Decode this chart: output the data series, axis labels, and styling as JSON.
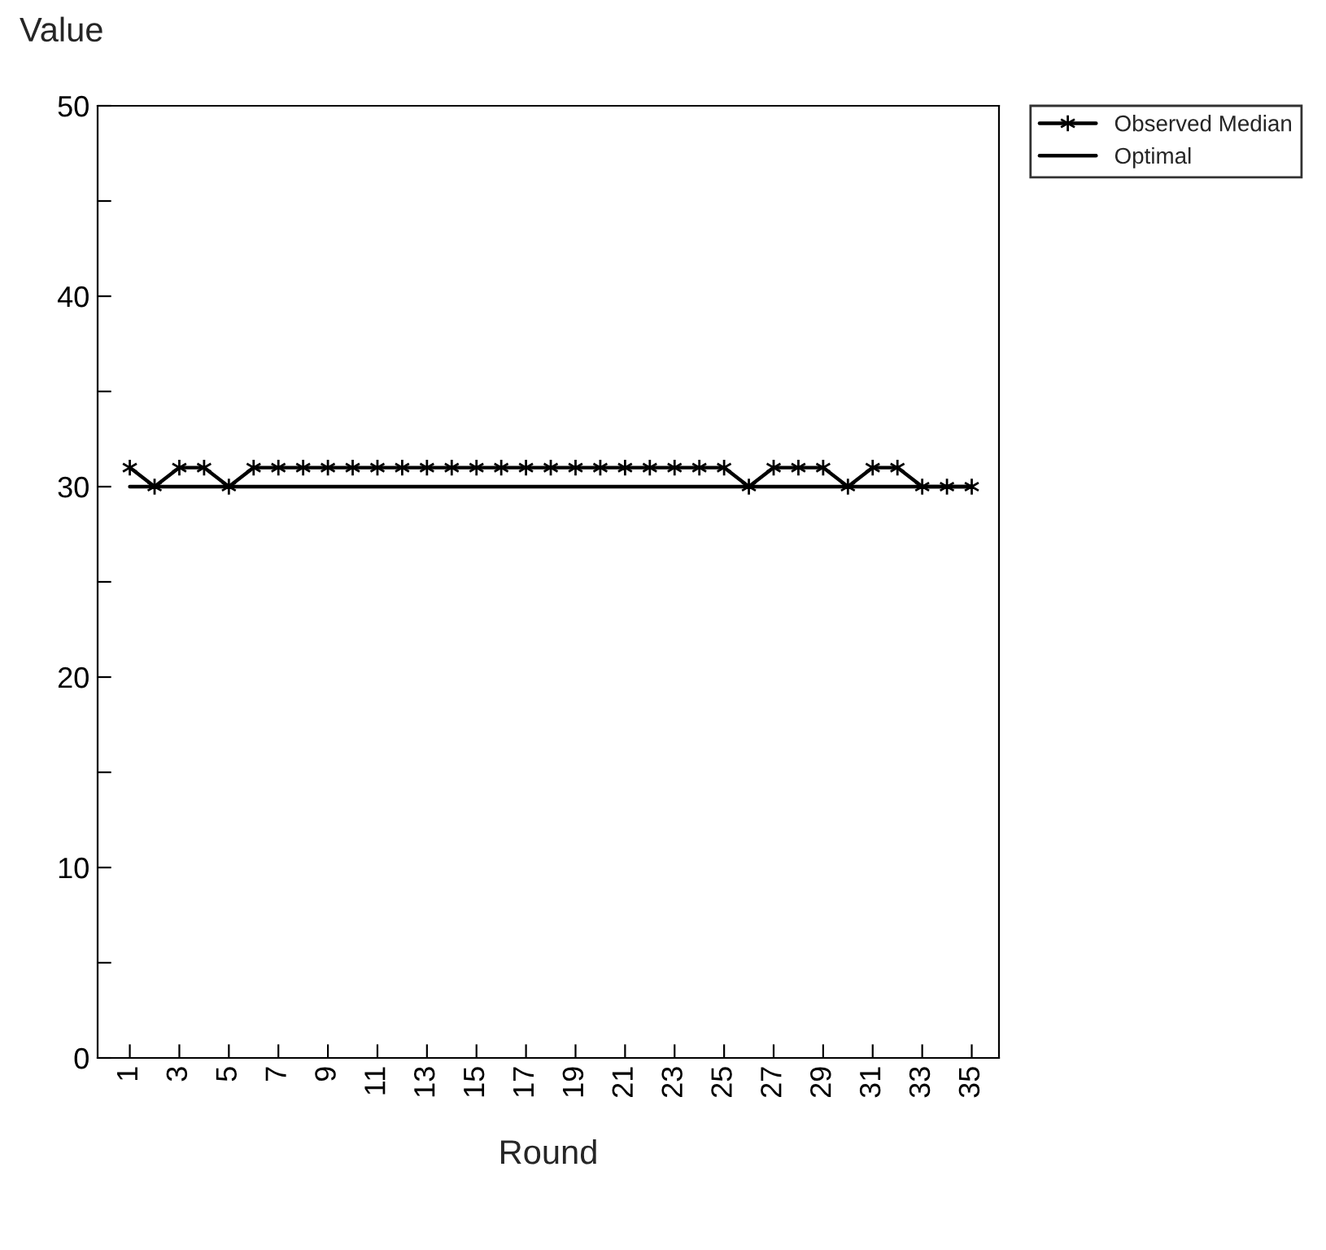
{
  "chart_data": {
    "type": "line",
    "ylabel": "Value",
    "xlabel": "Round",
    "x": [
      1,
      2,
      3,
      4,
      5,
      6,
      7,
      8,
      9,
      10,
      11,
      12,
      13,
      14,
      15,
      16,
      17,
      18,
      19,
      20,
      21,
      22,
      23,
      24,
      25,
      26,
      27,
      28,
      29,
      30,
      31,
      32,
      33,
      34,
      35
    ],
    "series": [
      {
        "name": "Observed Median",
        "color": "#000000",
        "marker": "cross",
        "values": [
          31,
          30,
          31,
          31,
          30,
          31,
          31,
          31,
          31,
          31,
          31,
          31,
          31,
          31,
          31,
          31,
          31,
          31,
          31,
          31,
          31,
          31,
          31,
          31,
          31,
          30,
          31,
          31,
          31,
          30,
          31,
          31,
          30,
          30,
          30
        ]
      },
      {
        "name": "Optimal",
        "color": "#000000",
        "marker": "none",
        "values": [
          30,
          30,
          30,
          30,
          30,
          30,
          30,
          30,
          30,
          30,
          30,
          30,
          30,
          30,
          30,
          30,
          30,
          30,
          30,
          30,
          30,
          30,
          30,
          30,
          30,
          30,
          30,
          30,
          30,
          30,
          30,
          30,
          30,
          30,
          30
        ]
      }
    ],
    "xlim": [
      -0.3,
      36.1
    ],
    "xticks": [
      1,
      3,
      5,
      7,
      9,
      11,
      13,
      15,
      17,
      19,
      21,
      23,
      25,
      27,
      29,
      31,
      33,
      35
    ],
    "ylim": [
      0,
      50
    ],
    "yticks": [
      0,
      {
        "value": 5,
        "label": null
      },
      10,
      {
        "value": 15,
        "label": null
      },
      20,
      {
        "value": 25,
        "label": null
      },
      30,
      {
        "value": 35,
        "label": null
      },
      40,
      {
        "value": 45,
        "label": null
      },
      50
    ],
    "grid": false,
    "legend": "right",
    "line_style": "solid"
  }
}
